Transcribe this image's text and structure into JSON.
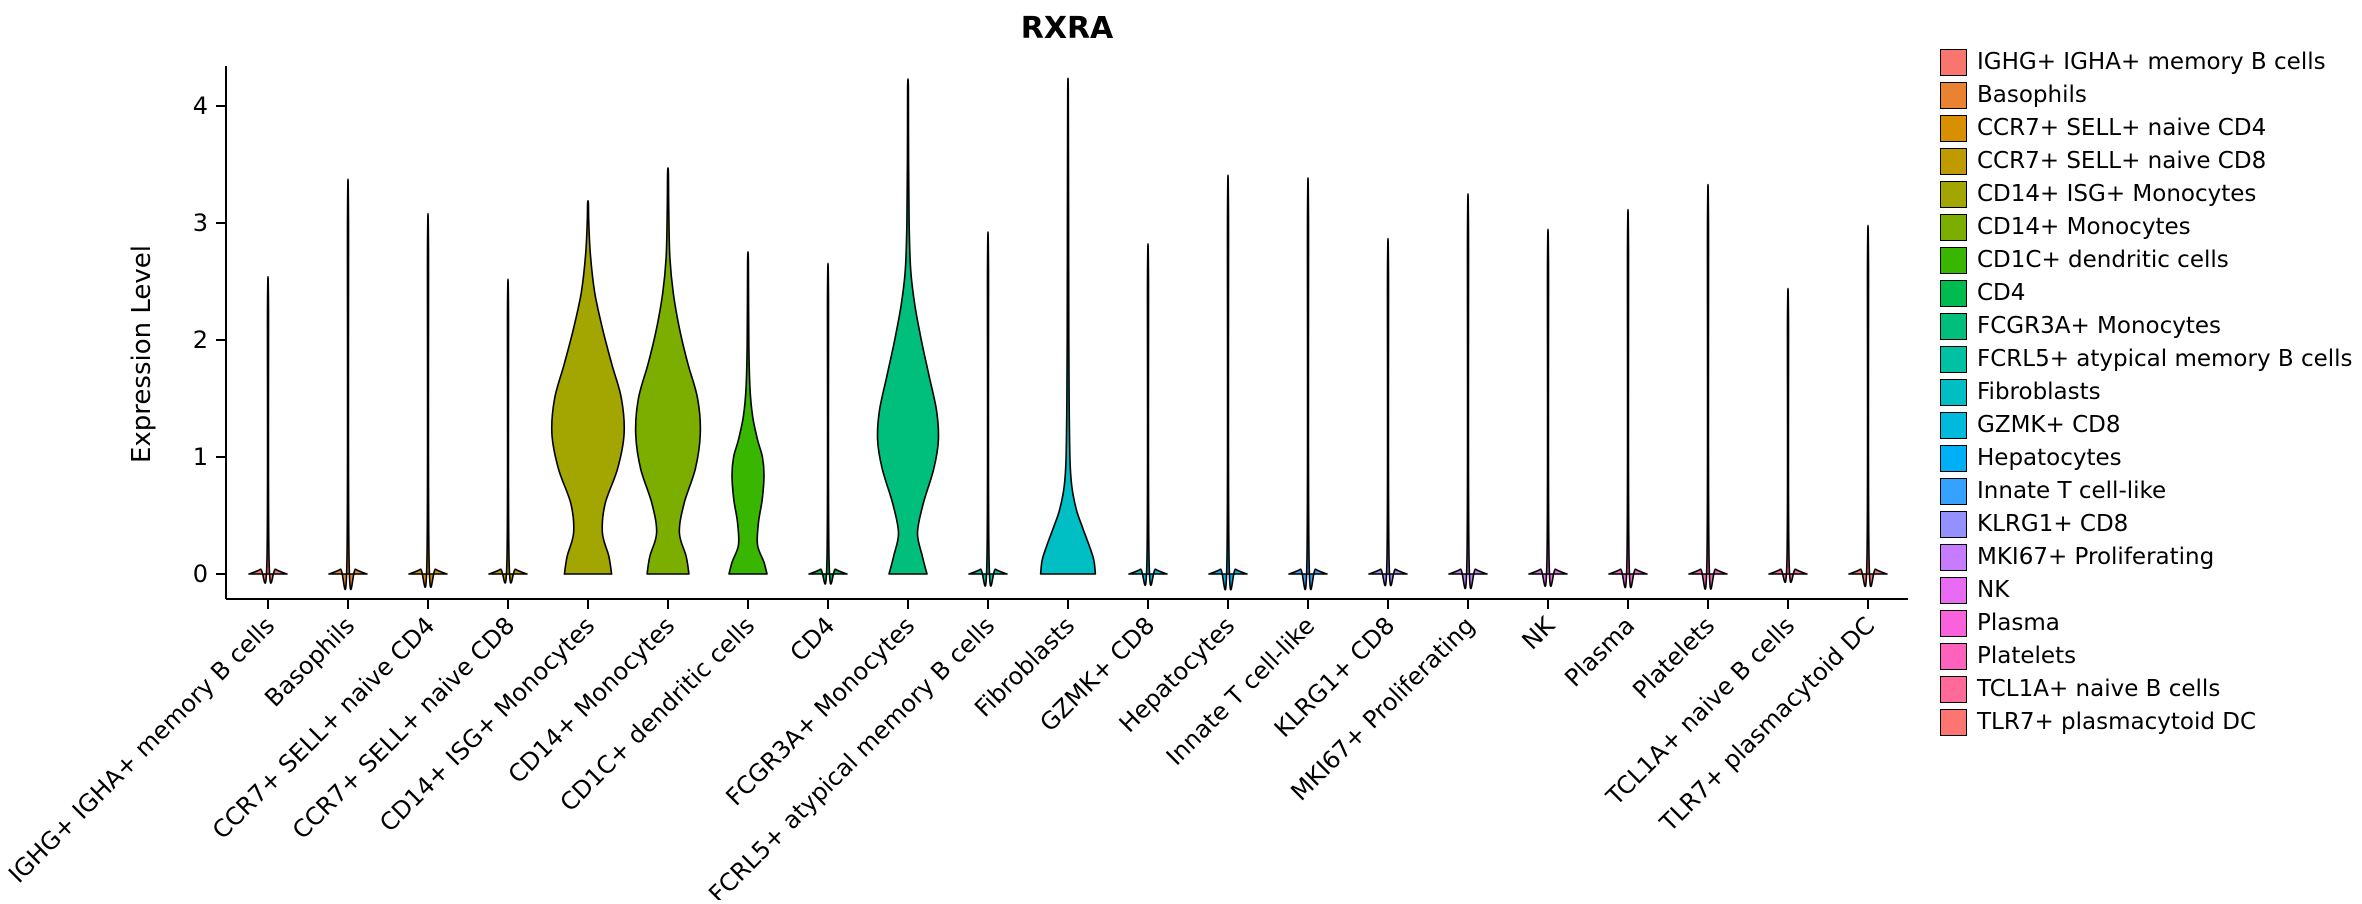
{
  "chart_data": {
    "type": "violin",
    "title": "RXRA",
    "xlabel": "",
    "ylabel": "Expression Level",
    "ylim": [
      0,
      4.35
    ],
    "yticks": [
      0,
      1,
      2,
      3,
      4
    ],
    "legend_position": "right",
    "grid": false,
    "categories": [
      "IGHG+ IGHA+ memory B cells",
      "Basophils",
      "CCR7+ SELL+ naive CD4",
      "CCR7+ SELL+ naive CD8",
      "CD14+ ISG+ Monocytes",
      "CD14+ Monocytes",
      "CD1C+ dendritic cells",
      "CD4",
      "FCGR3A+ Monocytes",
      "FCRL5+ atypical memory B cells",
      "Fibroblasts",
      "GZMK+ CD8",
      "Hepatocytes",
      "Innate T cell-like",
      "KLRG1+ CD8",
      "MKI67+ Proliferating",
      "NK",
      "Plasma",
      "Platelets",
      "TCL1A+ naive B cells",
      "TLR7+ plasmacytoid DC"
    ],
    "violins": [
      {
        "category": "IGHG+ IGHA+ memory B cells",
        "color": "#F8766D",
        "max_expression": 2.27
      },
      {
        "category": "Basophils",
        "color": "#EA8331",
        "max_expression": 3.01
      },
      {
        "category": "CCR7+ SELL+ naive CD4",
        "color": "#D89000",
        "max_expression": 2.75
      },
      {
        "category": "CCR7+ SELL+ naive CD8",
        "color": "#C09B00",
        "max_expression": 2.25
      },
      {
        "category": "CD14+ ISG+ Monocytes",
        "color": "#A3A500",
        "max_expression": 3.17,
        "profile": [
          [
            0,
            0.62
          ],
          [
            0.15,
            0.55
          ],
          [
            0.35,
            0.38
          ],
          [
            0.6,
            0.45
          ],
          [
            0.9,
            0.78
          ],
          [
            1.2,
            0.95
          ],
          [
            1.5,
            0.88
          ],
          [
            1.8,
            0.62
          ],
          [
            2.1,
            0.38
          ],
          [
            2.4,
            0.18
          ],
          [
            2.7,
            0.07
          ],
          [
            3.0,
            0.02
          ],
          [
            3.17,
            0.01
          ]
        ]
      },
      {
        "category": "CD14+ Monocytes",
        "color": "#7CAE00",
        "max_expression": 3.43,
        "profile": [
          [
            0,
            0.55
          ],
          [
            0.15,
            0.48
          ],
          [
            0.35,
            0.3
          ],
          [
            0.6,
            0.42
          ],
          [
            0.9,
            0.72
          ],
          [
            1.2,
            0.85
          ],
          [
            1.5,
            0.78
          ],
          [
            1.8,
            0.52
          ],
          [
            2.1,
            0.3
          ],
          [
            2.4,
            0.14
          ],
          [
            2.7,
            0.05
          ],
          [
            3.1,
            0.02
          ],
          [
            3.43,
            0.01
          ]
        ]
      },
      {
        "category": "CD1C+ dendritic cells",
        "color": "#39B600",
        "max_expression": 2.67,
        "profile": [
          [
            0,
            0.5
          ],
          [
            0.1,
            0.42
          ],
          [
            0.25,
            0.25
          ],
          [
            0.45,
            0.28
          ],
          [
            0.65,
            0.38
          ],
          [
            0.85,
            0.42
          ],
          [
            1.0,
            0.38
          ],
          [
            1.15,
            0.25
          ],
          [
            1.35,
            0.12
          ],
          [
            1.6,
            0.05
          ],
          [
            2.0,
            0.02
          ],
          [
            2.67,
            0.01
          ]
        ]
      },
      {
        "category": "CD4",
        "color": "#00BB4E",
        "max_expression": 2.37
      },
      {
        "category": "FCGR3A+ Monocytes",
        "color": "#00BF7D",
        "max_expression": 4.15,
        "profile": [
          [
            0,
            0.5
          ],
          [
            0.15,
            0.38
          ],
          [
            0.35,
            0.25
          ],
          [
            0.6,
            0.4
          ],
          [
            0.9,
            0.68
          ],
          [
            1.15,
            0.8
          ],
          [
            1.4,
            0.75
          ],
          [
            1.7,
            0.55
          ],
          [
            2.0,
            0.35
          ],
          [
            2.3,
            0.18
          ],
          [
            2.6,
            0.07
          ],
          [
            3.0,
            0.03
          ],
          [
            3.5,
            0.015
          ],
          [
            4.15,
            0.01
          ]
        ]
      },
      {
        "category": "FCRL5+ atypical memory B cells",
        "color": "#00C1A3",
        "max_expression": 2.61
      },
      {
        "category": "Fibroblasts",
        "color": "#00BFC4",
        "max_expression": 4.1,
        "profile": [
          [
            0,
            0.72
          ],
          [
            0.12,
            0.68
          ],
          [
            0.25,
            0.55
          ],
          [
            0.4,
            0.38
          ],
          [
            0.55,
            0.22
          ],
          [
            0.75,
            0.1
          ],
          [
            1.0,
            0.05
          ],
          [
            1.5,
            0.03
          ],
          [
            2.0,
            0.022
          ],
          [
            2.5,
            0.018
          ],
          [
            3.0,
            0.015
          ],
          [
            4.1,
            0.008
          ]
        ]
      },
      {
        "category": "GZMK+ CD8",
        "color": "#00BADE",
        "max_expression": 2.52
      },
      {
        "category": "Hepatocytes",
        "color": "#00B0F6",
        "max_expression": 3.04
      },
      {
        "category": "Innate T cell-like",
        "color": "#35A2FF",
        "max_expression": 3.02
      },
      {
        "category": "KLRG1+ CD8",
        "color": "#9590FF",
        "max_expression": 2.56
      },
      {
        "category": "MKI67+ Proliferating",
        "color": "#C77CFF",
        "max_expression": 2.9
      },
      {
        "category": "NK",
        "color": "#E76BF3",
        "max_expression": 2.63
      },
      {
        "category": "Plasma",
        "color": "#FA62DB",
        "max_expression": 2.78
      },
      {
        "category": "Platelets",
        "color": "#FF62BC",
        "max_expression": 2.97
      },
      {
        "category": "TCL1A+ naive B cells",
        "color": "#FF6A9A",
        "max_expression": 2.18
      },
      {
        "category": "TLR7+ plasmacytoid DC",
        "color": "#FC7571",
        "max_expression": 2.66
      }
    ]
  }
}
